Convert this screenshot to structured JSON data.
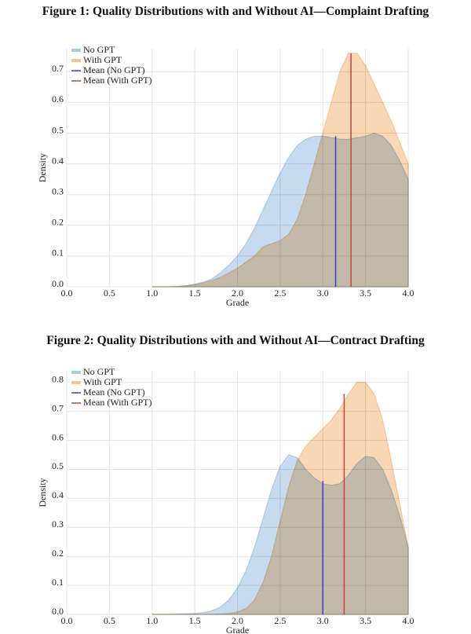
{
  "chart_data": [
    {
      "type": "kde",
      "title": "Figure 1: Quality Distributions with and Without AI—Complaint Drafting",
      "x_label": "Grade",
      "y_label": "Density",
      "x": [
        1.0,
        1.1,
        1.2,
        1.3,
        1.4,
        1.5,
        1.6,
        1.7,
        1.8,
        1.9,
        2.0,
        2.1,
        2.2,
        2.3,
        2.4,
        2.5,
        2.6,
        2.7,
        2.8,
        2.9,
        3.0,
        3.1,
        3.2,
        3.3,
        3.4,
        3.5,
        3.6,
        3.7,
        3.8,
        3.9,
        4.0
      ],
      "series": [
        {
          "name": "No GPT",
          "color": "#a8c8e6",
          "values": [
            0,
            0,
            0,
            0.001,
            0.003,
            0.008,
            0.015,
            0.025,
            0.045,
            0.07,
            0.1,
            0.14,
            0.19,
            0.25,
            0.31,
            0.37,
            0.42,
            0.46,
            0.48,
            0.49,
            0.49,
            0.485,
            0.48,
            0.48,
            0.485,
            0.49,
            0.5,
            0.49,
            0.46,
            0.41,
            0.35
          ]
        },
        {
          "name": "With GPT",
          "color": "#f6c28e",
          "values": [
            0,
            0,
            0,
            0.001,
            0.003,
            0.007,
            0.012,
            0.02,
            0.03,
            0.045,
            0.06,
            0.08,
            0.1,
            0.13,
            0.14,
            0.15,
            0.17,
            0.22,
            0.3,
            0.4,
            0.5,
            0.6,
            0.7,
            0.76,
            0.76,
            0.72,
            0.66,
            0.6,
            0.54,
            0.47,
            0.4
          ]
        }
      ],
      "mean_lines": [
        {
          "name": "Mean (No GPT)",
          "color": "#3a3ad0",
          "x": 3.15,
          "y": 0.49
        },
        {
          "name": "Mean (With GPT)",
          "color": "#c94040",
          "x": 3.33,
          "y": 0.76
        }
      ],
      "xlim": [
        0,
        4
      ],
      "ylim": [
        0,
        0.775
      ],
      "xticks": [
        {
          "value": 0,
          "label": "0.0"
        },
        0.5,
        {
          "value": 1,
          "label": "1.0"
        },
        1.5,
        {
          "value": 2,
          "label": "2.0"
        },
        2.5,
        {
          "value": 3,
          "label": "3.0"
        },
        3.5,
        {
          "value": 4,
          "label": "4.0"
        }
      ],
      "yticks": [
        {
          "value": 0,
          "label": "0.0"
        },
        0.1,
        0.2,
        0.3,
        0.4,
        0.5,
        0.6,
        0.7
      ],
      "grid": true,
      "legend": "upper left"
    },
    {
      "type": "kde",
      "title": "Figure 2: Quality Distributions with and Without AI—Contract Drafting",
      "x_label": "Grade",
      "y_label": "Density",
      "x": [
        1.0,
        1.1,
        1.2,
        1.3,
        1.4,
        1.5,
        1.6,
        1.7,
        1.8,
        1.9,
        2.0,
        2.1,
        2.2,
        2.3,
        2.4,
        2.5,
        2.6,
        2.7,
        2.8,
        2.9,
        3.0,
        3.1,
        3.2,
        3.3,
        3.4,
        3.5,
        3.6,
        3.7,
        3.8,
        3.9,
        4.0
      ],
      "series": [
        {
          "name": "No GPT",
          "color": "#a8c8e6",
          "values": [
            0,
            0,
            0,
            0.001,
            0.002,
            0.003,
            0.006,
            0.012,
            0.025,
            0.05,
            0.09,
            0.15,
            0.23,
            0.33,
            0.43,
            0.51,
            0.55,
            0.54,
            0.5,
            0.47,
            0.45,
            0.445,
            0.45,
            0.48,
            0.52,
            0.545,
            0.54,
            0.5,
            0.43,
            0.34,
            0.23
          ]
        },
        {
          "name": "With GPT",
          "color": "#f6c28e",
          "values": [
            0,
            0,
            0,
            0,
            0,
            0,
            0,
            0,
            0.001,
            0.003,
            0.008,
            0.02,
            0.05,
            0.11,
            0.2,
            0.32,
            0.44,
            0.53,
            0.58,
            0.61,
            0.64,
            0.67,
            0.71,
            0.76,
            0.8,
            0.8,
            0.76,
            0.67,
            0.53,
            0.38,
            0.23
          ]
        }
      ],
      "mean_lines": [
        {
          "name": "Mean (No GPT)",
          "color": "#3a3ad0",
          "x": 3.0,
          "y": 0.46
        },
        {
          "name": "Mean (With GPT)",
          "color": "#c94040",
          "x": 3.25,
          "y": 0.76
        }
      ],
      "xlim": [
        0,
        4
      ],
      "ylim": [
        0,
        0.84
      ],
      "xticks": [
        {
          "value": 0,
          "label": "0.0"
        },
        0.5,
        {
          "value": 1,
          "label": "1.0"
        },
        1.5,
        {
          "value": 2,
          "label": "2.0"
        },
        2.5,
        {
          "value": 3,
          "label": "3.0"
        },
        3.5,
        {
          "value": 4,
          "label": "4.0"
        }
      ],
      "yticks": [
        {
          "value": 0,
          "label": "0.0"
        },
        0.1,
        0.2,
        0.3,
        0.4,
        0.5,
        0.6,
        0.7,
        0.8
      ],
      "grid": true,
      "legend": "upper left"
    }
  ]
}
